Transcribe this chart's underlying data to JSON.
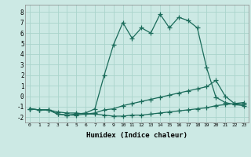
{
  "xlabel": "Humidex (Indice chaleur)",
  "bg_color": "#cce9e4",
  "line_color": "#1a6b5a",
  "grid_color": "#aad4cc",
  "xlim": [
    -0.5,
    23.5
  ],
  "ylim": [
    -2.5,
    8.7
  ],
  "xticks": [
    0,
    1,
    2,
    3,
    4,
    5,
    6,
    7,
    8,
    9,
    10,
    11,
    12,
    13,
    14,
    15,
    16,
    17,
    18,
    19,
    20,
    21,
    22,
    23
  ],
  "yticks": [
    -2,
    -1,
    0,
    1,
    2,
    3,
    4,
    5,
    6,
    7,
    8
  ],
  "line1_x": [
    0,
    1,
    2,
    3,
    4,
    5,
    6,
    7,
    8,
    9,
    10,
    11,
    12,
    13,
    14,
    15,
    16,
    17,
    18,
    19,
    20,
    21,
    22,
    23
  ],
  "line1_y": [
    -1.2,
    -1.3,
    -1.3,
    -1.5,
    -1.6,
    -1.6,
    -1.7,
    -1.7,
    -1.8,
    -1.9,
    -1.9,
    -1.8,
    -1.8,
    -1.7,
    -1.6,
    -1.5,
    -1.4,
    -1.3,
    -1.2,
    -1.1,
    -0.9,
    -0.8,
    -0.7,
    -0.6
  ],
  "line2_x": [
    0,
    1,
    2,
    3,
    4,
    5,
    6,
    7,
    8,
    9,
    10,
    11,
    12,
    13,
    14,
    15,
    16,
    17,
    18,
    19,
    20,
    21,
    22,
    23
  ],
  "line2_y": [
    -1.2,
    -1.3,
    -1.3,
    -1.7,
    -1.8,
    -1.8,
    -1.7,
    -1.6,
    -1.3,
    -1.2,
    -0.9,
    -0.7,
    -0.5,
    -0.3,
    -0.1,
    0.1,
    0.3,
    0.5,
    0.7,
    0.9,
    1.5,
    0.0,
    -0.7,
    -0.8
  ],
  "line3_x": [
    0,
    1,
    2,
    3,
    4,
    5,
    6,
    7,
    8,
    9,
    10,
    11,
    12,
    13,
    14,
    15,
    16,
    17,
    18,
    19,
    20,
    21,
    22,
    23
  ],
  "line3_y": [
    -1.2,
    -1.3,
    -1.3,
    -1.7,
    -1.8,
    -1.7,
    -1.6,
    -1.2,
    2.0,
    4.9,
    7.0,
    5.5,
    6.5,
    6.0,
    7.8,
    6.5,
    7.5,
    7.2,
    6.5,
    2.7,
    -0.1,
    -0.6,
    -0.8,
    -0.9
  ]
}
